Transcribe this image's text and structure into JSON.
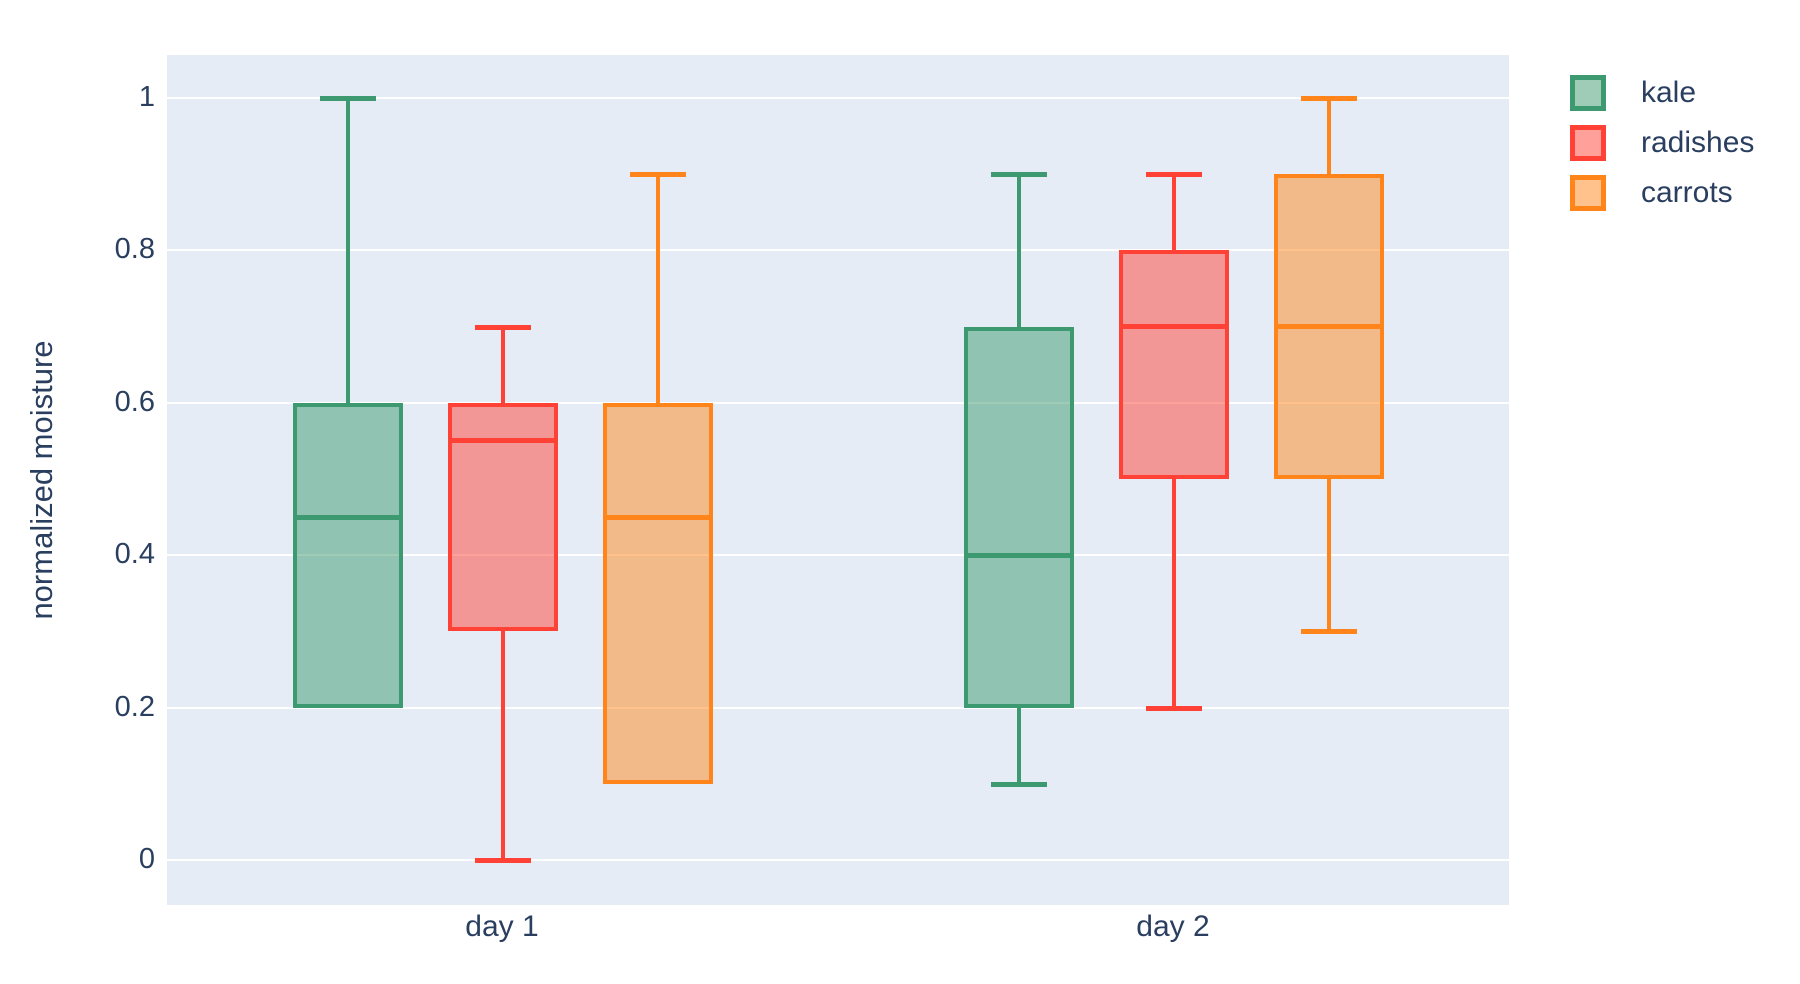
{
  "colors": {
    "paper_background": "#FFFFFF",
    "plot_background": "#E5ECF6",
    "gridline": "#FFFFFF",
    "text": "#2A3F5F",
    "kale": "#3D9970",
    "radishes": "#FF4136",
    "carrots": "#FF851B"
  },
  "chart_data": {
    "type": "box",
    "boxmode": "group",
    "title": "",
    "xlabel": "",
    "ylabel": "normalized moisture",
    "categories": [
      "day 1",
      "day 2"
    ],
    "yticks": [
      0,
      0.2,
      0.4,
      0.6,
      0.8,
      1
    ],
    "ytick_labels": [
      "0",
      "0.2",
      "0.4",
      "0.6",
      "0.8",
      "1"
    ],
    "ylim": [
      -0.062,
      1.056
    ],
    "grid": true,
    "legend_position": "top-right",
    "legend_entries": [
      "kale",
      "radishes",
      "carrots"
    ],
    "series": [
      {
        "name": "kale",
        "color": "#3D9970",
        "boxes": [
          {
            "category": "day 1",
            "min": 0.2,
            "q1": 0.2,
            "median": 0.45,
            "q3": 0.6,
            "max": 1.0
          },
          {
            "category": "day 2",
            "min": 0.1,
            "q1": 0.2,
            "median": 0.4,
            "q3": 0.7,
            "max": 0.9
          }
        ]
      },
      {
        "name": "radishes",
        "color": "#FF4136",
        "boxes": [
          {
            "category": "day 1",
            "min": 0.0,
            "q1": 0.3,
            "median": 0.55,
            "q3": 0.6,
            "max": 0.7
          },
          {
            "category": "day 2",
            "min": 0.2,
            "q1": 0.5,
            "median": 0.7,
            "q3": 0.8,
            "max": 0.9
          }
        ]
      },
      {
        "name": "carrots",
        "color": "#FF851B",
        "boxes": [
          {
            "category": "day 1",
            "min": 0.1,
            "q1": 0.1,
            "median": 0.45,
            "q3": 0.6,
            "max": 0.9
          },
          {
            "category": "day 2",
            "min": 0.3,
            "q1": 0.5,
            "median": 0.7,
            "q3": 0.9,
            "max": 1.0
          }
        ]
      }
    ]
  }
}
